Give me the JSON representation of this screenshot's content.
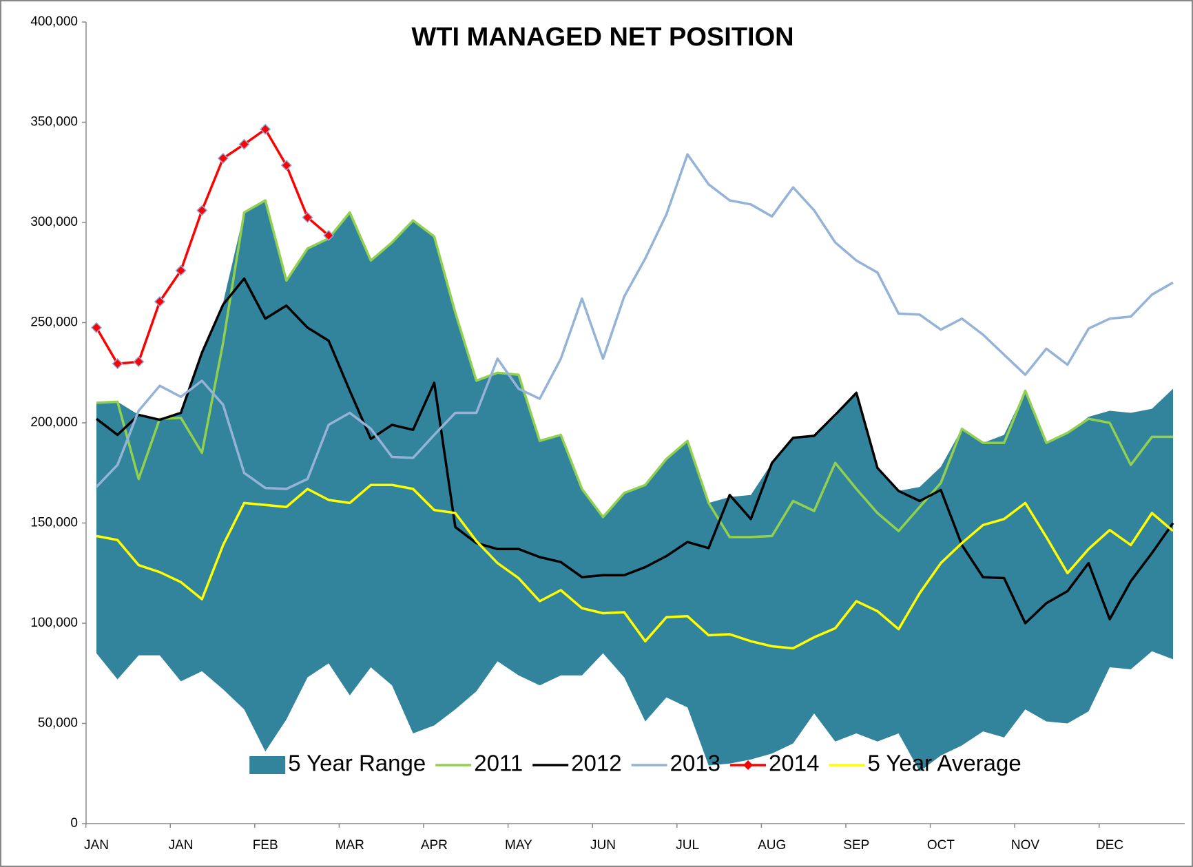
{
  "chart_data": {
    "type": "line",
    "title": "WTI MANAGED NET POSITION",
    "categories": [
      "JAN",
      null,
      null,
      null,
      "JAN",
      null,
      null,
      null,
      "FEB",
      null,
      null,
      null,
      "MAR",
      null,
      null,
      null,
      "APR",
      null,
      null,
      null,
      "MAY",
      null,
      null,
      null,
      "JUN",
      null,
      null,
      null,
      "JUL",
      null,
      null,
      null,
      "AUG",
      null,
      null,
      null,
      "SEP",
      null,
      null,
      null,
      "OCT",
      null,
      null,
      null,
      "NOV",
      null,
      null,
      null,
      "DEC",
      null,
      null,
      null
    ],
    "ylim": [
      0,
      400000
    ],
    "yticks": [
      {
        "value": 0,
        "label": "0"
      },
      {
        "value": 50000,
        "label": "50,000"
      },
      {
        "value": 100000,
        "label": "100,000"
      },
      {
        "value": 150000,
        "label": "150,000"
      },
      {
        "value": 200000,
        "label": "200,000"
      },
      {
        "value": 250000,
        "label": "250,000"
      },
      {
        "value": 300000,
        "label": "300,000"
      },
      {
        "value": 350000,
        "label": "350,000"
      },
      {
        "value": 400000,
        "label": "400,000"
      }
    ],
    "grid": false,
    "legend": "lower center",
    "series": [
      {
        "name": "5 Year Range",
        "type": "range",
        "color": "#31849b",
        "low": [
          85000,
          72000,
          84000,
          84000,
          71000,
          76000,
          67000,
          57000,
          36000,
          52000,
          73000,
          80000,
          64000,
          78000,
          69000,
          45000,
          49000,
          57000,
          66000,
          81000,
          74000,
          69000,
          74000,
          74000,
          85000,
          73000,
          51000,
          63000,
          58000,
          29000,
          30000,
          32000,
          35000,
          40000,
          55000,
          41000,
          45000,
          41000,
          45000,
          26000,
          34000,
          39000,
          46000,
          43000,
          57000,
          51000,
          50000,
          56000,
          78000,
          77000,
          86000,
          82000
        ],
        "high": [
          210000,
          210500,
          204000,
          202000,
          205000,
          235000,
          260000,
          305000,
          311000,
          271000,
          287000,
          292000,
          305000,
          281000,
          290000,
          301000,
          293000,
          255000,
          221000,
          225000,
          224000,
          191000,
          194000,
          167000,
          153000,
          165000,
          169000,
          182000,
          191000,
          160000,
          163000,
          164000,
          180000,
          192000,
          193000,
          203000,
          215000,
          178000,
          166000,
          168000,
          178000,
          197000,
          190000,
          194000,
          216000,
          190000,
          195000,
          203000,
          206000,
          205000,
          207000,
          217000
        ]
      },
      {
        "name": "2011",
        "type": "line",
        "color": "#92d050",
        "values": [
          210000,
          210500,
          172000,
          202000,
          202500,
          185000,
          240000,
          305000,
          311000,
          271000,
          287000,
          292000,
          305000,
          281000,
          290000,
          301000,
          293000,
          255000,
          221000,
          225000,
          224000,
          191000,
          194000,
          167000,
          153000,
          165000,
          169000,
          182000,
          191000,
          160000,
          143000,
          143000,
          143500,
          161000,
          156000,
          180000,
          167000,
          155000,
          146000,
          158000,
          170000,
          197000,
          190000,
          190000,
          216000,
          190000,
          195000,
          202000,
          200000,
          179000,
          193000,
          193000
        ]
      },
      {
        "name": "2012",
        "type": "line",
        "color": "#000000",
        "values": [
          202000,
          194000,
          204000,
          201500,
          205000,
          235000,
          259000,
          272000,
          252000,
          258500,
          247500,
          241000,
          216000,
          192000,
          199000,
          196500,
          220000,
          148000,
          140000,
          137000,
          137000,
          133000,
          130500,
          123000,
          124000,
          124000,
          128000,
          133500,
          140500,
          137500,
          164000,
          152000,
          180000,
          192500,
          193500,
          204000,
          215000,
          177500,
          166000,
          161000,
          166500,
          139000,
          123000,
          122500,
          100000,
          110000,
          116000,
          130000,
          102000,
          121000,
          135000,
          150000
        ]
      },
      {
        "name": "2013",
        "type": "line",
        "color": "#95b3d7",
        "values": [
          168000,
          179000,
          206000,
          218500,
          213000,
          221000,
          209000,
          175000,
          167500,
          167000,
          172000,
          199000,
          205000,
          197000,
          183000,
          182500,
          194000,
          205000,
          205000,
          232000,
          217000,
          212000,
          232000,
          262000,
          232000,
          263000,
          282000,
          304000,
          334000,
          319000,
          311000,
          309000,
          303000,
          317500,
          306000,
          290000,
          281000,
          275000,
          254500,
          254000,
          246500,
          252000,
          244000,
          234000,
          224000,
          237000,
          229000,
          247000,
          252000,
          253000,
          264000,
          270000
        ]
      },
      {
        "name": "2014",
        "type": "line",
        "color": "#ff0000",
        "marker": "diamond",
        "values": [
          247500,
          229500,
          230500,
          260500,
          276000,
          306000,
          332000,
          339000,
          346500,
          328500,
          302500,
          293500,
          null,
          null,
          null,
          null,
          null,
          null,
          null,
          null,
          null,
          null,
          null,
          null,
          null,
          null,
          null,
          null,
          null,
          null,
          null,
          null,
          null,
          null,
          null,
          null,
          null,
          null,
          null,
          null,
          null,
          null,
          null,
          null,
          null,
          null,
          null,
          null,
          null,
          null,
          null,
          null
        ]
      },
      {
        "name": "5 Year Average",
        "type": "line",
        "color": "#ffff00",
        "values": [
          143500,
          141500,
          129000,
          125500,
          120500,
          112000,
          139000,
          160000,
          159000,
          158000,
          167000,
          161500,
          160000,
          169000,
          169000,
          167000,
          156500,
          155000,
          141000,
          130000,
          122500,
          111000,
          116500,
          107500,
          105000,
          105500,
          91000,
          103000,
          103500,
          94000,
          94500,
          91000,
          88500,
          87500,
          93000,
          97500,
          111000,
          106000,
          97000,
          115000,
          130000,
          140000,
          149000,
          152000,
          160000,
          143000,
          125000,
          137000,
          146500,
          139000,
          155000,
          146000
        ]
      }
    ]
  }
}
